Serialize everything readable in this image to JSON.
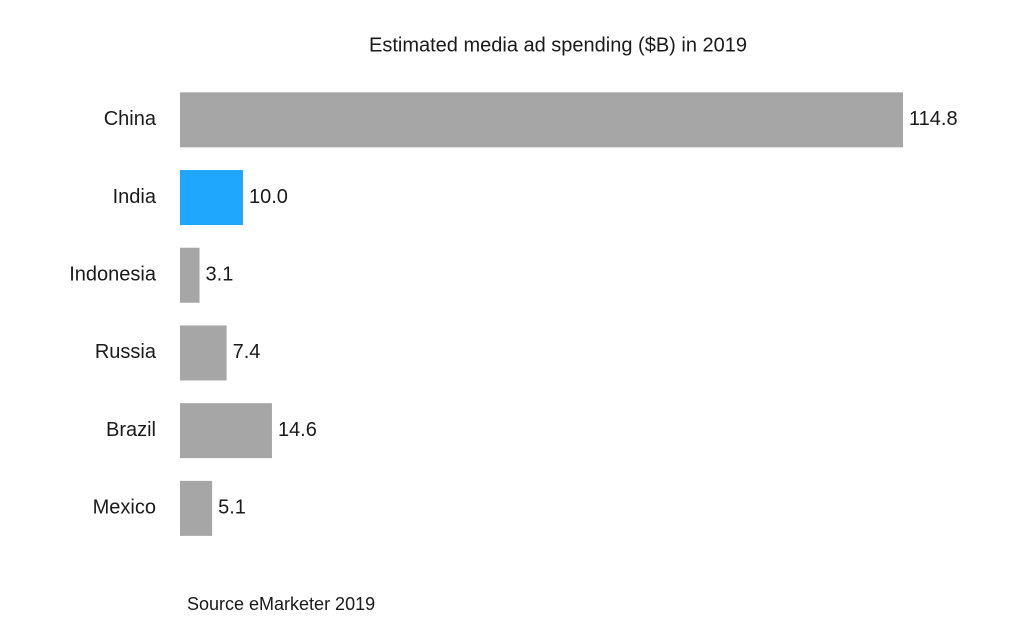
{
  "chart_data": {
    "type": "bar",
    "orientation": "horizontal",
    "title": "Estimated media ad spending ($B) in 2019",
    "categories": [
      "China",
      "India",
      "Indonesia",
      "Russia",
      "Brazil",
      "Mexico"
    ],
    "values": [
      114.8,
      10,
      3.1,
      7.4,
      14.6,
      5.1
    ],
    "value_labels": [
      "114.8",
      "10.0",
      "3.1",
      "7.4",
      "14.6",
      "5.1"
    ],
    "colors": [
      "#a6a6a6",
      "#1ea7fd",
      "#a6a6a6",
      "#a6a6a6",
      "#a6a6a6",
      "#a6a6a6"
    ],
    "source": "Source eMarketer 2019"
  }
}
